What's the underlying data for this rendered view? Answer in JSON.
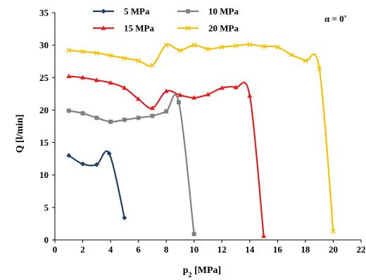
{
  "chart_data": {
    "type": "line",
    "xlabel_main": "p",
    "xlabel_sub": "2",
    "xlabel_unit": " [MPa]",
    "ylabel": "Q [l/min]",
    "annotation": "α = 0˚",
    "xlim": [
      0,
      22
    ],
    "ylim": [
      0,
      35
    ],
    "xticks": [
      0,
      2,
      4,
      6,
      8,
      10,
      12,
      14,
      16,
      18,
      20,
      22
    ],
    "yticks": [
      0,
      5,
      10,
      15,
      20,
      25,
      30,
      35
    ],
    "grid": false,
    "legend_position": "top",
    "series": [
      {
        "name": "5 MPa",
        "color": "#1f3f66",
        "marker": "diamond",
        "x": [
          1,
          2,
          3,
          3.9,
          5
        ],
        "y": [
          13,
          11.7,
          11.6,
          13.3,
          3.4
        ]
      },
      {
        "name": "10 MPa",
        "color": "#808080",
        "marker": "square",
        "x": [
          1,
          2,
          3,
          4,
          5,
          6,
          7,
          8,
          8.9,
          10
        ],
        "y": [
          19.9,
          19.5,
          18.8,
          18.2,
          18.5,
          18.8,
          19.1,
          19.8,
          21.2,
          0.9
        ]
      },
      {
        "name": "15 MPa",
        "color": "#e02020",
        "marker": "triangle",
        "x": [
          1,
          2,
          3,
          4,
          5,
          6,
          7,
          8,
          9,
          10,
          11,
          12,
          13,
          14,
          15
        ],
        "y": [
          25.2,
          25.0,
          24.6,
          24.2,
          23.4,
          21.7,
          20.3,
          22.9,
          22.3,
          21.9,
          22.4,
          23.4,
          23.5,
          22.2,
          0.6
        ]
      },
      {
        "name": "20 MPa",
        "color": "#f5c000",
        "marker": "x",
        "x": [
          1,
          2,
          3,
          4,
          5,
          6,
          7,
          8,
          9,
          10,
          11,
          12,
          13,
          14,
          15,
          16,
          17,
          18,
          19,
          20
        ],
        "y": [
          29.2,
          29.0,
          28.8,
          28.4,
          28.0,
          27.6,
          26.9,
          30.0,
          29.2,
          30.0,
          29.4,
          29.7,
          29.9,
          30.1,
          29.8,
          29.7,
          28.5,
          27.6,
          26.4,
          1.3
        ]
      }
    ]
  }
}
